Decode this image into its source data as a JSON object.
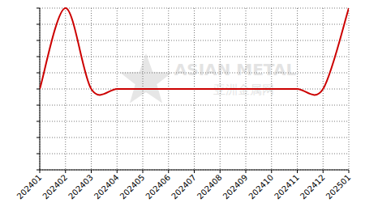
{
  "chart_data": {
    "type": "line",
    "annotations": [
      "ASIAN METAL",
      "亚洲金属网"
    ],
    "categories": [
      "202401",
      "202402",
      "202403",
      "202404",
      "202405",
      "202406",
      "202407",
      "202408",
      "202409",
      "202410",
      "202411",
      "202412",
      "202501"
    ],
    "values": [
      5,
      10,
      5,
      5,
      5,
      5,
      5,
      5,
      5,
      5,
      5,
      5,
      10
    ],
    "color": "#cc0000",
    "ylim": [
      0,
      10
    ],
    "yticks": [
      0,
      1,
      2,
      3,
      4,
      5,
      6,
      7,
      8,
      9,
      10
    ],
    "grid": true,
    "tick_labels": "x"
  }
}
